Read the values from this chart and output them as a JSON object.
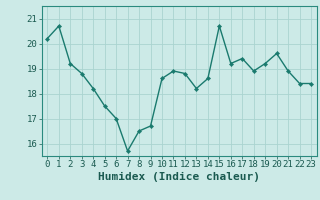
{
  "x": [
    0,
    1,
    2,
    3,
    4,
    5,
    6,
    7,
    8,
    9,
    10,
    11,
    12,
    13,
    14,
    15,
    16,
    17,
    18,
    19,
    20,
    21,
    22,
    23
  ],
  "y": [
    20.2,
    20.7,
    19.2,
    18.8,
    18.2,
    17.5,
    17.0,
    15.7,
    16.5,
    16.7,
    18.6,
    18.9,
    18.8,
    18.2,
    18.6,
    20.7,
    19.2,
    19.4,
    18.9,
    19.2,
    19.6,
    18.9,
    18.4,
    18.4
  ],
  "line_color": "#1a7a6e",
  "marker": "D",
  "marker_size": 2.2,
  "bg_color": "#cceae7",
  "grid_color": "#aad4d0",
  "xlabel": "Humidex (Indice chaleur)",
  "xlabel_fontsize": 8,
  "tick_fontsize": 6.5,
  "ylim": [
    15.5,
    21.5
  ],
  "yticks": [
    16,
    17,
    18,
    19,
    20,
    21
  ],
  "xticks": [
    0,
    1,
    2,
    3,
    4,
    5,
    6,
    7,
    8,
    9,
    10,
    11,
    12,
    13,
    14,
    15,
    16,
    17,
    18,
    19,
    20,
    21,
    22,
    23
  ],
  "xtick_labels": [
    "0",
    "1",
    "2",
    "3",
    "4",
    "5",
    "6",
    "7",
    "8",
    "9",
    "10",
    "11",
    "12",
    "13",
    "14",
    "15",
    "16",
    "17",
    "18",
    "19",
    "20",
    "21",
    "22",
    "23"
  ],
  "line_width": 1.0,
  "xlim": [
    -0.5,
    23.5
  ],
  "spine_color": "#2a8a7e",
  "tick_color": "#2a8a7e",
  "label_color": "#1a5a50"
}
